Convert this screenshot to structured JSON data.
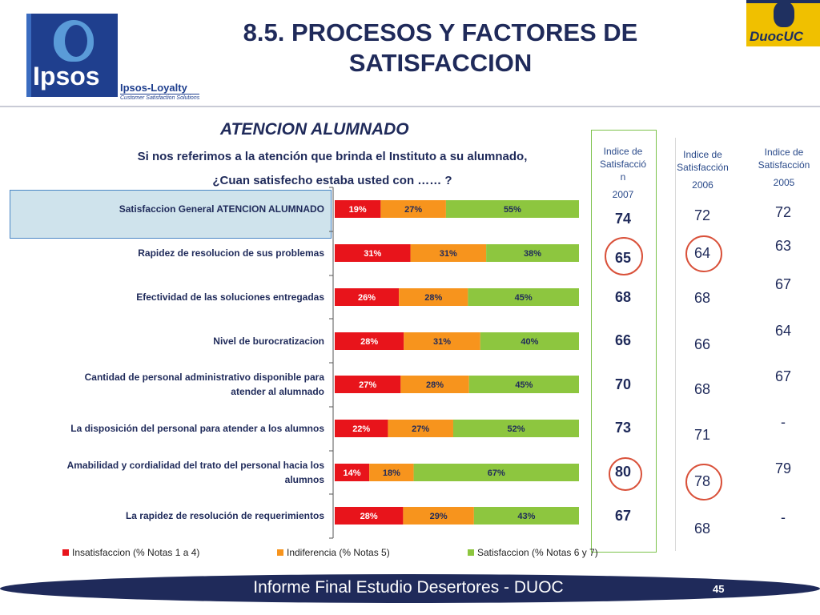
{
  "header": {
    "title_line1": "8.5. PROCESOS Y FACTORES DE",
    "title_line2": "SATISFACCION",
    "ipsos_logo_text": "Ipsos",
    "loyalty_text": "Ipsos-Loyalty",
    "loyalty_subtext": "Customer Satisfaction Solutions",
    "duoc_logo_text": "DuocUC"
  },
  "section": {
    "title": "ATENCION ALUMNADO",
    "question_line1": "Si nos referimos a la atención que brinda el Instituto a su alumnado,",
    "question_line2": "¿Cuan satisfecho estaba usted con …… ?"
  },
  "index_columns": {
    "col2007_head": [
      "Indice de",
      "Satisfacció",
      "n"
    ],
    "col2007_year": "2007",
    "col2006_head": [
      "Indice de",
      "Satisfacción"
    ],
    "col2006_year": "2006",
    "col2005_head": [
      "Indice de",
      "Satisfacción"
    ],
    "col2005_year": "2005"
  },
  "colors": {
    "insatisfaccion": "#e8141b",
    "indiferencia": "#f7941d",
    "satisfaccion": "#8dc63f",
    "navy": "#1f2a5a",
    "circle": "#d9513a"
  },
  "chart_data": {
    "type": "bar",
    "orientation": "horizontal",
    "stacked": true,
    "categories": [
      "Satisfaccion General ATENCION ALUMNADO",
      "Rapidez de resolucion de sus problemas",
      "Efectividad de las soluciones entregadas",
      "Nivel de burocratizacion",
      "Cantidad de personal administrativo disponible para atender al alumnado",
      "La disposición del personal para atender a los alumnos",
      "Amabilidad y cordialidad del trato del personal hacia los alumnos",
      "La rapidez de resolución de requerimientos"
    ],
    "category_lines": [
      [
        "Satisfaccion General ATENCION ALUMNADO"
      ],
      [
        "Rapidez de resolucion de sus problemas"
      ],
      [
        "Efectividad de las soluciones entregadas"
      ],
      [
        "Nivel de burocratizacion"
      ],
      [
        "Cantidad de personal administrativo disponible para",
        "atender al alumnado"
      ],
      [
        "La disposición del personal para atender a los alumnos"
      ],
      [
        "Amabilidad y cordialidad del trato del personal hacia los",
        "alumnos"
      ],
      [
        "La rapidez de resolución de requerimientos"
      ]
    ],
    "series": [
      {
        "name": "Insatisfaccion (% Notas 1 a 4)",
        "color": "#e8141b",
        "values": [
          19,
          31,
          26,
          28,
          27,
          22,
          14,
          28
        ]
      },
      {
        "name": "Indiferencia (% Notas 5)",
        "color": "#f7941d",
        "values": [
          27,
          31,
          28,
          31,
          28,
          27,
          18,
          29
        ]
      },
      {
        "name": "Satisfaccion (% Notas 6 y 7)",
        "color": "#8dc63f",
        "values": [
          55,
          38,
          45,
          40,
          45,
          52,
          67,
          43
        ]
      }
    ],
    "value_suffix": "%",
    "xlim": [
      0,
      100
    ],
    "legend_position": "bottom",
    "index_2007": [
      "74",
      "65",
      "68",
      "66",
      "70",
      "73",
      "80",
      "67"
    ],
    "index_2006": [
      "72",
      "64",
      "68",
      "66",
      "68",
      "71",
      "78",
      "68"
    ],
    "index_2005": [
      "72",
      "63",
      "67",
      "64",
      "67",
      "-",
      "79",
      "-"
    ]
  },
  "footer": {
    "text": "Informe Final Estudio Desertores - DUOC",
    "page_number": "45"
  }
}
